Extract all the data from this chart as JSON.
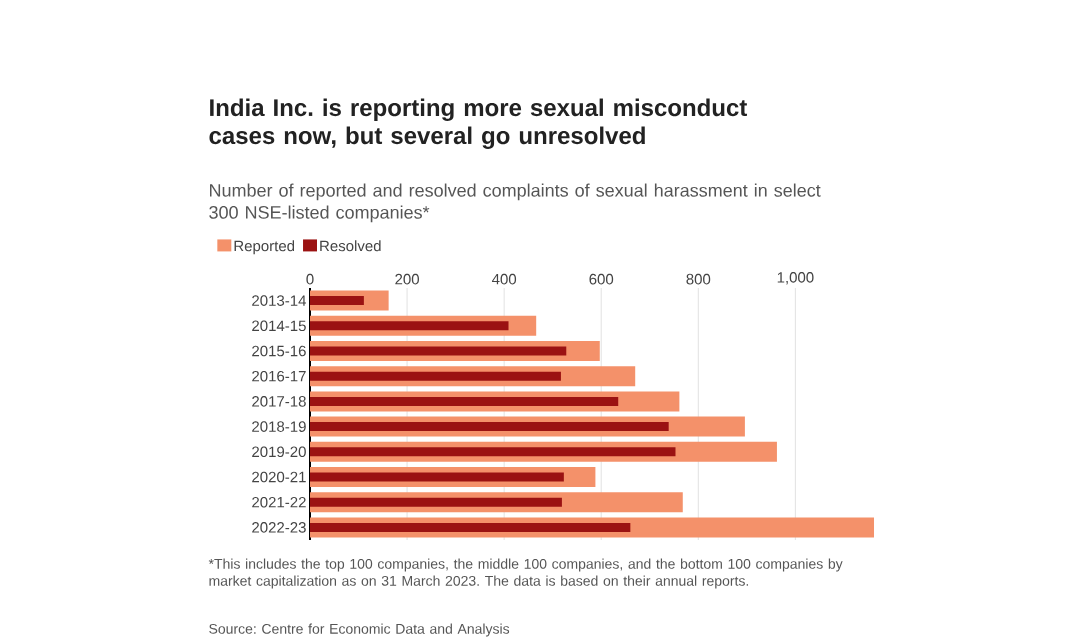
{
  "chart_data": {
    "type": "bar",
    "orientation": "horizontal",
    "title": "India Inc. is reporting more sexual misconduct cases now, but several go unresolved",
    "subtitle": "Number of reported and resolved complaints of sexual harassment in select 300 NSE-listed companies*",
    "categories": [
      "2013-14",
      "2014-15",
      "2015-16",
      "2016-17",
      "2017-18",
      "2018-19",
      "2019-20",
      "2020-21",
      "2021-22",
      "2022-23"
    ],
    "series": [
      {
        "name": "Reported",
        "color": "#f4916a",
        "values": [
          162,
          466,
          597,
          670,
          761,
          896,
          962,
          588,
          768,
          1162
        ]
      },
      {
        "name": "Resolved",
        "color": "#9b1212",
        "values": [
          111,
          409,
          528,
          517,
          635,
          739,
          753,
          523,
          519,
          660
        ]
      }
    ],
    "xlim": [
      0,
      1162
    ],
    "xticks": [
      0,
      200,
      400,
      600,
      800,
      {
        "value": 1000,
        "label": "1,000"
      }
    ],
    "grid": "x",
    "legend": "top left",
    "annotations": [
      "*This includes the top 100 companies, the middle 100 companies, and the bottom 100 companies by market capitalization as on 31 March 2023. The data is based on their annual reports.",
      "Source: Centre for Economic Data and Analysis"
    ]
  }
}
